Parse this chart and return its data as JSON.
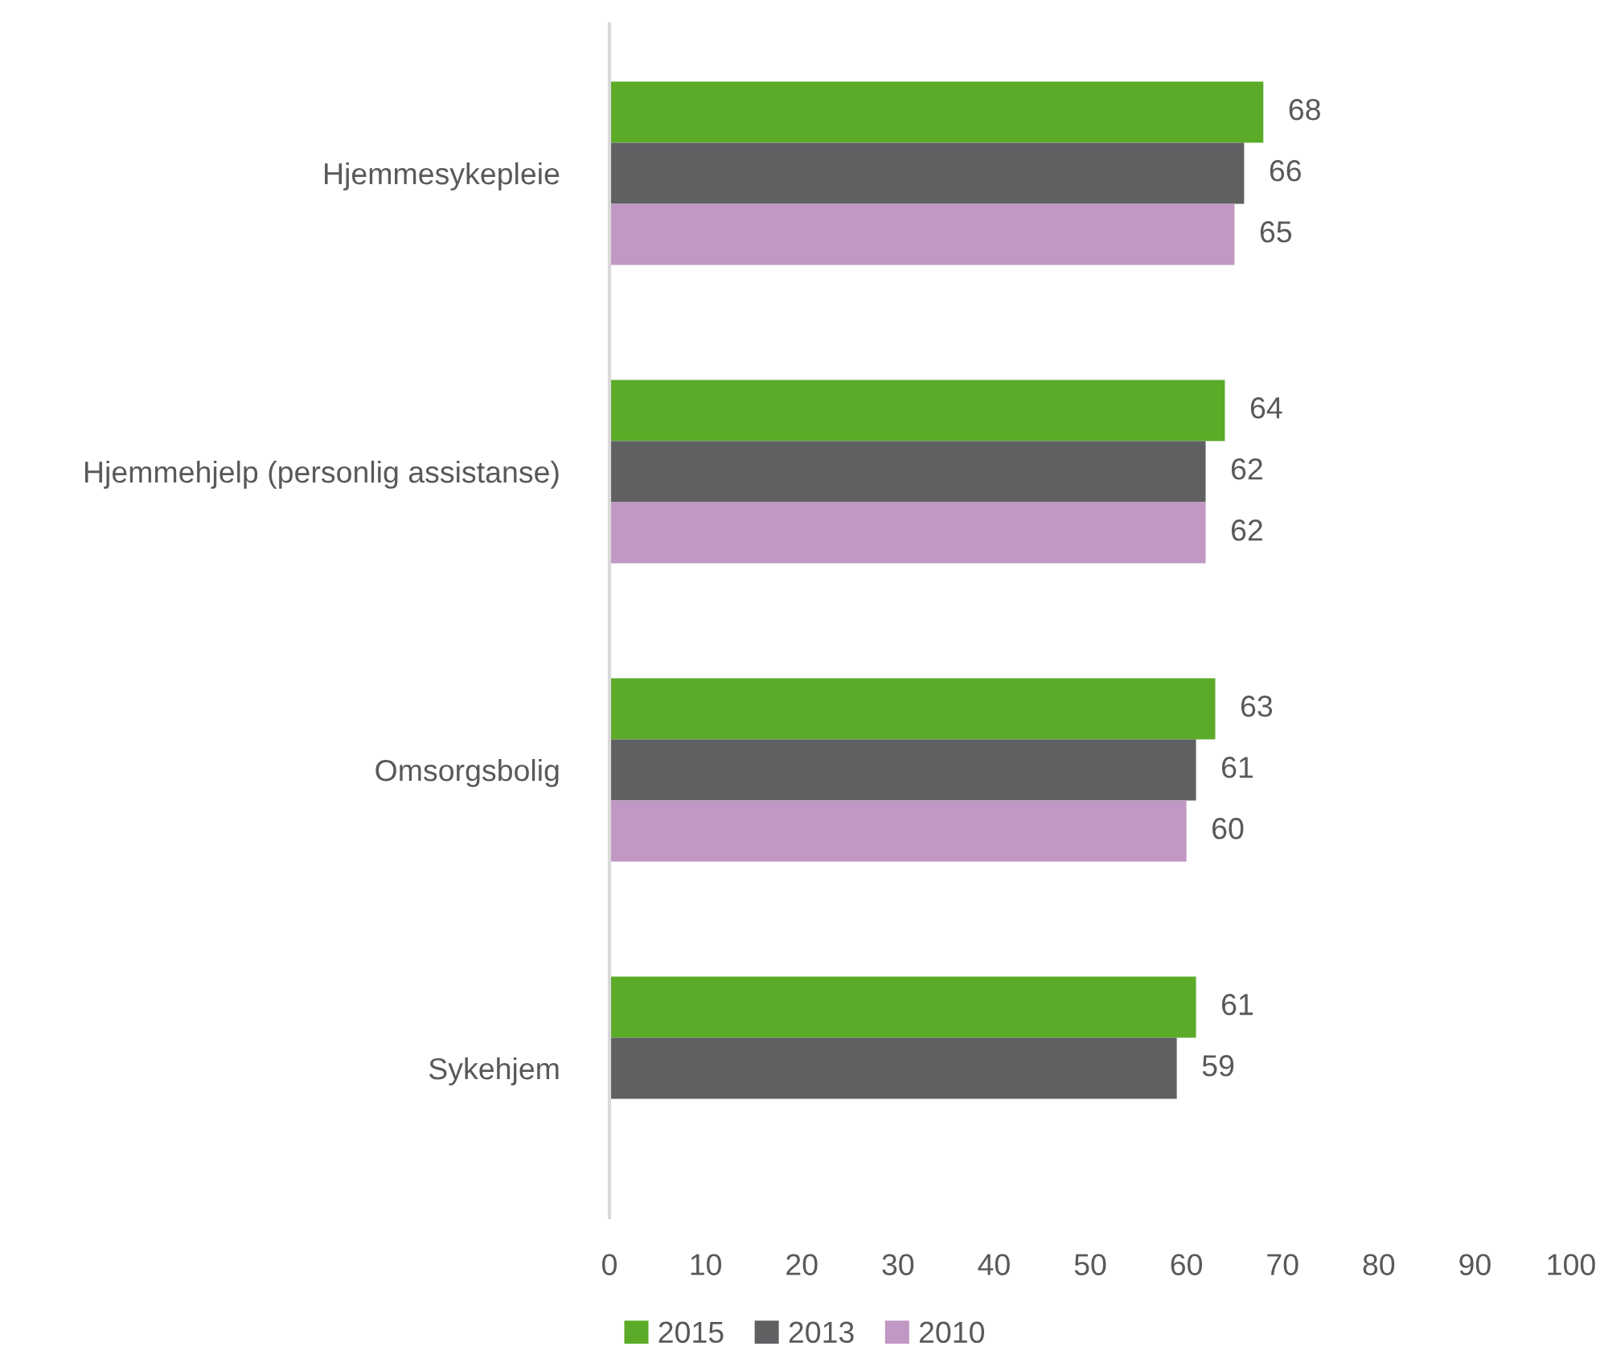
{
  "chart_data": {
    "type": "bar",
    "orientation": "horizontal",
    "categories": [
      "Hjemmesykepleie",
      "Hjemmehjelp (personlig assistanse)",
      "Omsorgsbolig",
      "Sykehjem"
    ],
    "series": [
      {
        "name": "2015",
        "color": "#5bab29",
        "values": [
          68,
          64,
          63,
          61
        ]
      },
      {
        "name": "2013",
        "color": "#5f6062",
        "values": [
          66,
          62,
          61,
          59
        ]
      },
      {
        "name": "2010",
        "color": "#c197c3",
        "values": [
          65,
          62,
          60,
          null
        ]
      }
    ],
    "xlim": [
      0,
      100
    ],
    "xticks": [
      0,
      10,
      20,
      30,
      40,
      50,
      60,
      70,
      80,
      90,
      100
    ],
    "data_labels": true,
    "legend": "bottom",
    "grid": false
  }
}
